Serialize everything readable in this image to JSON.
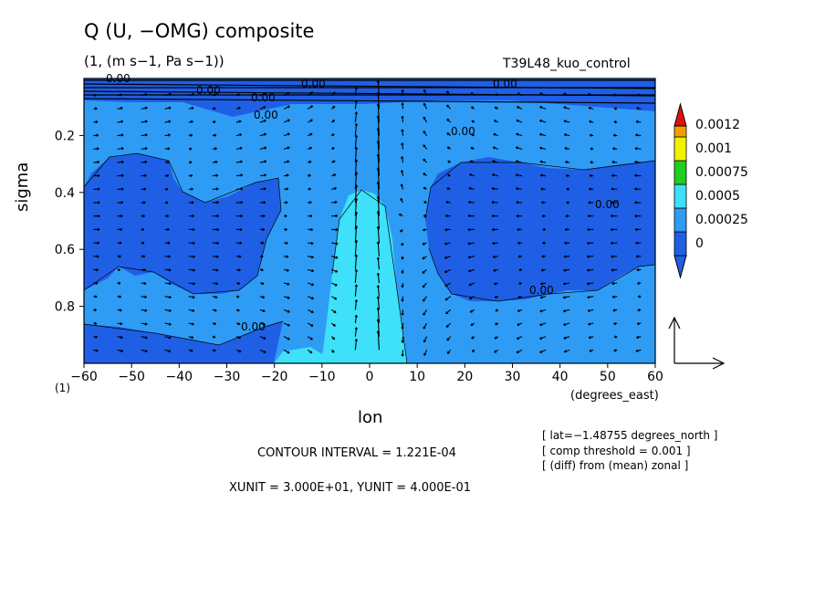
{
  "header": {
    "title": "Q (U, −OMG) composite",
    "units": "(1, (m s−1, Pa s−1))",
    "run": "T39L48_kuo_control"
  },
  "axes": {
    "ylabel": "sigma",
    "xlabel": "lon",
    "xunits": "(degrees_east)",
    "yunit_marker": "(1)"
  },
  "footer": {
    "contour_interval": "CONTOUR INTERVAL = 1.221E-04",
    "xy_unit": "XUNIT = 3.000E+01, YUNIT = 4.000E-01"
  },
  "info": {
    "lat": "[ lat=−1.48755 degrees_north ]",
    "threshold": "[ comp threshold = 0.001 ]",
    "diff": "[ (diff) from (mean) zonal ]"
  },
  "colors": {
    "level0": "#1f5fe6",
    "level1": "#2e9cf5",
    "level2": "#3ee0fa",
    "level3": "#1ecf1e",
    "level4": "#f2f200",
    "level5": "#f2a000",
    "level6": "#e01010"
  },
  "chart_data": {
    "type": "heatmap",
    "title": "Q (U, −OMG) composite",
    "xlabel": "lon",
    "ylabel": "sigma",
    "xlim": [
      -60,
      60
    ],
    "ylim": [
      1.0,
      0.0
    ],
    "x_ticks": [
      "−60",
      "−50",
      "−40",
      "−30",
      "−20",
      "−10",
      "0",
      "10",
      "20",
      "30",
      "40",
      "50",
      "60"
    ],
    "y_ticks": [
      "0.2",
      "0.4",
      "0.6",
      "0.8"
    ],
    "colorbar": {
      "labels": [
        "0",
        "0.00025",
        "0.0005",
        "0.00075",
        "0.001",
        "0.0012"
      ]
    },
    "contour_labels": [
      "0.00",
      "0.00",
      "0.00",
      "0.00",
      "0.00",
      "0.00",
      "0.00",
      "0.00",
      "0.00",
      "0.00"
    ],
    "overlay": "wind vectors (U, −OMG)"
  }
}
